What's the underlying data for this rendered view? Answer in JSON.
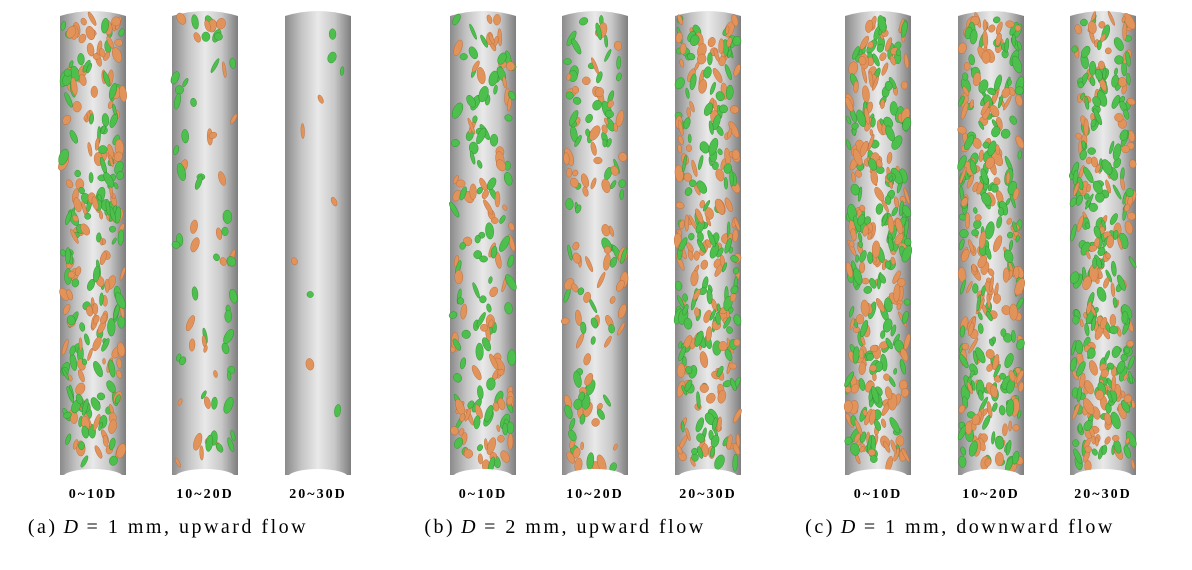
{
  "panels": [
    {
      "label": "(a)",
      "variable": "D",
      "rest": "= 1 mm, upward flow",
      "tubes": [
        "0~10D",
        "10~20D",
        "20~30D"
      ]
    },
    {
      "label": "(b)",
      "variable": "D",
      "rest": "= 2 mm, upward flow",
      "tubes": [
        "0~10D",
        "10~20D",
        "20~30D"
      ]
    },
    {
      "label": "(c)",
      "variable": "D",
      "rest": "= 1 mm, downward flow",
      "tubes": [
        "0~10D",
        "10~20D",
        "20~30D"
      ]
    }
  ]
}
